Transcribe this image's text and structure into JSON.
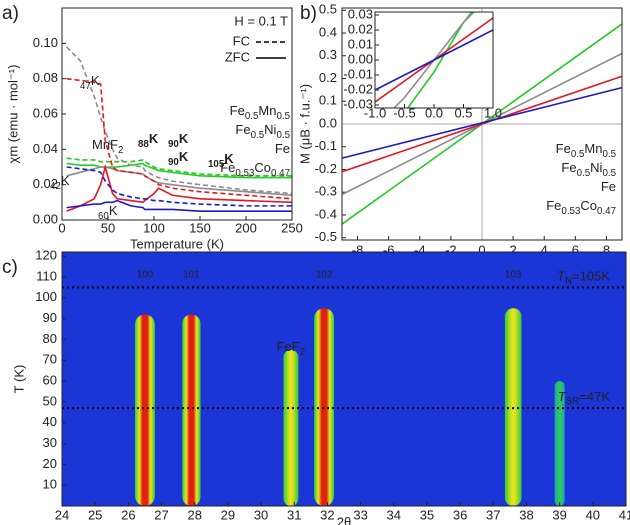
{
  "chart_data": [
    {
      "type": "line",
      "panel": "a)",
      "xlabel": "Temperature (K)",
      "ylabel": "χm (emu · mol⁻¹)",
      "field": "H = 0.1 T",
      "line_styles": [
        "FC",
        "ZFC"
      ],
      "xlim": [
        0,
        250
      ],
      "ylim": [
        0,
        0.12
      ],
      "xticks": [
        0,
        50,
        100,
        150,
        200,
        250
      ],
      "yticks": [
        {
          "value": 0,
          "label": "0.00"
        },
        {
          "value": 0.02,
          "label": "0.02"
        },
        {
          "value": 0.04,
          "label": "0.04"
        },
        {
          "value": 0.06,
          "label": "0.06"
        },
        {
          "value": 0.08,
          "label": "0.08"
        },
        {
          "value": 0.1,
          "label": "0.10"
        }
      ],
      "x": [
        5,
        20,
        35,
        42,
        47,
        55,
        60,
        75,
        88,
        90,
        100,
        105,
        120,
        150,
        200,
        250
      ],
      "series": [
        {
          "name": "Fe0.5Mn0.5",
          "color": "#22cc22",
          "fc": [
            0.035,
            0.034,
            0.034,
            0.033,
            0.033,
            0.033,
            0.033,
            0.033,
            0.034,
            0.033,
            0.03,
            0.029,
            0.028,
            0.026,
            0.025,
            0.025
          ],
          "zfc": [
            0.032,
            0.031,
            0.031,
            0.03,
            0.03,
            0.03,
            0.03,
            0.031,
            0.032,
            0.031,
            0.029,
            0.028,
            0.027,
            0.025,
            0.024,
            0.024
          ]
        },
        {
          "name": "Fe0.5Ni0.5",
          "color": "#8c8c8c",
          "fc": [
            0.098,
            0.09,
            0.07,
            0.058,
            0.05,
            0.04,
            0.035,
            0.031,
            0.03,
            0.028,
            0.025,
            0.024,
            0.022,
            0.02,
            0.017,
            0.015
          ],
          "zfc": [
            0.025,
            0.027,
            0.029,
            0.03,
            0.03,
            0.029,
            0.028,
            0.027,
            0.026,
            0.025,
            0.022,
            0.021,
            0.02,
            0.018,
            0.016,
            0.014
          ]
        },
        {
          "name": "Fe",
          "color": "#e8141e",
          "fc": [
            0.08,
            0.079,
            0.078,
            0.077,
            0.045,
            0.03,
            0.028,
            0.027,
            0.026,
            0.025,
            0.022,
            0.02,
            0.018,
            0.016,
            0.014,
            0.012
          ],
          "zfc": [
            0.005,
            0.008,
            0.012,
            0.02,
            0.03,
            0.015,
            0.012,
            0.011,
            0.01,
            0.011,
            0.015,
            0.018,
            0.014,
            0.012,
            0.011,
            0.01
          ]
        },
        {
          "name": "Fe0.53Co0.47",
          "color": "#1a1acc",
          "fc": [
            0.03,
            0.029,
            0.028,
            0.027,
            0.022,
            0.017,
            0.015,
            0.013,
            0.012,
            0.012,
            0.011,
            0.011,
            0.01,
            0.009,
            0.008,
            0.008
          ],
          "zfc": [
            0.007,
            0.008,
            0.009,
            0.009,
            0.01,
            0.01,
            0.011,
            0.008,
            0.007,
            0.006,
            0.006,
            0.006,
            0.006,
            0.005,
            0.005,
            0.005
          ]
        }
      ],
      "annotations": [
        {
          "text": "47K",
          "color": "#e8141e"
        },
        {
          "text": "MnF2",
          "color": "#22cc22"
        },
        {
          "text": "88K",
          "color": "#22cc22"
        },
        {
          "text": "90K",
          "color": "#8c8c8c"
        },
        {
          "text": "90K",
          "color": "#1a1acc"
        },
        {
          "text": "105K",
          "color": "#e8141e"
        },
        {
          "text": "42K",
          "color": "#8c8c8c"
        },
        {
          "text": "60K",
          "color": "#1a1acc"
        }
      ]
    },
    {
      "type": "line",
      "panel": "b)",
      "xlabel": "H (10⁴ Oe)",
      "ylabel": "M (μB · f.u.⁻¹)",
      "xlim": [
        -9,
        9
      ],
      "ylim": [
        -0.51,
        0.51
      ],
      "xticks": [
        -8,
        -6,
        -4,
        -2,
        0,
        2,
        4,
        6,
        8
      ],
      "yticks": [
        {
          "value": -0.5,
          "label": "-0.5"
        },
        {
          "value": -0.4,
          "label": "-0.4"
        },
        {
          "value": -0.3,
          "label": "-0.3"
        },
        {
          "value": -0.2,
          "label": "-0.2"
        },
        {
          "value": -0.1,
          "label": "-0.1"
        },
        {
          "value": 0,
          "label": "0.0"
        },
        {
          "value": 0.1,
          "label": "0.1"
        },
        {
          "value": 0.2,
          "label": "0.2"
        },
        {
          "value": 0.3,
          "label": "0.3"
        },
        {
          "value": 0.4,
          "label": "0.4"
        },
        {
          "value": 0.5,
          "label": "0.5"
        }
      ],
      "x": [
        -9,
        9
      ],
      "series": [
        {
          "name": "Fe0.5Mn0.5",
          "color": "#22cc22",
          "values": [
            -0.44,
            0.44
          ]
        },
        {
          "name": "Fe0.5Ni0.5",
          "color": "#8c8c8c",
          "values": [
            -0.31,
            0.31
          ]
        },
        {
          "name": "Fe",
          "color": "#e8141e",
          "values": [
            -0.21,
            0.21
          ]
        },
        {
          "name": "Fe0.53Co0.47",
          "color": "#1a1acc",
          "values": [
            -0.15,
            0.16
          ]
        }
      ],
      "inset": {
        "xlim": [
          -1,
          1
        ],
        "ylim": [
          -0.032,
          0.032
        ],
        "xticks": [
          {
            "value": -1,
            "label": "-1.0"
          },
          {
            "value": -0.5,
            "label": "-0.5"
          },
          {
            "value": 0,
            "label": "0.0"
          },
          {
            "value": 0.5,
            "label": "0.5"
          },
          {
            "value": 1,
            "label": "1.0"
          }
        ],
        "yticks": [
          {
            "value": -0.03,
            "label": "-0.03"
          },
          {
            "value": -0.02,
            "label": "-0.02"
          },
          {
            "value": -0.01,
            "label": "-0.01"
          },
          {
            "value": 0,
            "label": "0.00"
          },
          {
            "value": 0.01,
            "label": "0.01"
          },
          {
            "value": 0.02,
            "label": "0.02"
          },
          {
            "value": 0.03,
            "label": "0.03"
          }
        ],
        "x": [
          -1,
          -0.5,
          0,
          0.5,
          1
        ],
        "series": [
          {
            "color": "#22cc22",
            "values": [
              -0.06,
              -0.035,
              -0.008,
              0.025,
              0.05
            ]
          },
          {
            "color": "#8c8c8c",
            "values": [
              -0.045,
              -0.025,
              0,
              0.025,
              0.045
            ]
          },
          {
            "color": "#e8141e",
            "values": [
              -0.028,
              -0.014,
              0,
              0.014,
              0.028
            ]
          },
          {
            "color": "#1a1acc",
            "values": [
              -0.02,
              -0.01,
              0,
              0.01,
              0.02
            ]
          }
        ]
      }
    },
    {
      "type": "heatmap",
      "panel": "c)",
      "xlabel": "2θ",
      "ylabel": "T (K)",
      "xlim": [
        24,
        41
      ],
      "ylim": [
        0,
        122
      ],
      "xticks": [
        24,
        25,
        26,
        27,
        28,
        29,
        30,
        31,
        32,
        33,
        34,
        35,
        36,
        37,
        38,
        39,
        40,
        41
      ],
      "yticks": [
        10,
        20,
        30,
        40,
        50,
        60,
        70,
        80,
        90,
        100,
        110,
        120
      ],
      "peaks": [
        {
          "label": "100",
          "x": 26.5,
          "width": 0.6,
          "top": 92,
          "intensity": 1
        },
        {
          "label": "101",
          "x": 27.9,
          "width": 0.55,
          "top": 92,
          "intensity": 1
        },
        {
          "label": "FeF2",
          "x": 30.9,
          "width": 0.45,
          "top": 75,
          "intensity": 0.85
        },
        {
          "label": "102",
          "x": 31.9,
          "width": 0.6,
          "top": 95,
          "intensity": 1
        },
        {
          "label": "103",
          "x": 37.6,
          "width": 0.5,
          "top": 95,
          "intensity": 0.7
        },
        {
          "label": null,
          "x": 39.0,
          "width": 0.3,
          "top": 60,
          "intensity": 0.4
        }
      ],
      "hlines": [
        {
          "value": 105,
          "label": "TN=105K"
        },
        {
          "value": 47,
          "label": "TSR=47K"
        }
      ]
    }
  ]
}
